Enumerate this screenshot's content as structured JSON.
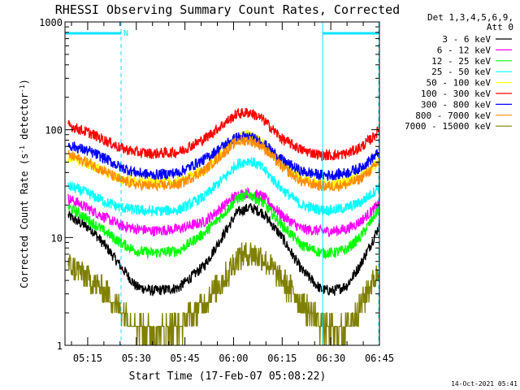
{
  "chart_data": {
    "type": "line",
    "title": "RHESSI Observing Summary Count Rates, Corrected",
    "xlabel": "Start Time (17-Feb-07 05:08:22)",
    "ylabel": "Corrected Count Rate (s-1 detector-1)",
    "ylabel_parts": {
      "a": "Corrected Count Rate (s",
      "b": "-1",
      "c": " detector",
      "d": "-1",
      "e": ")"
    },
    "yscale": "log",
    "ylim": [
      1,
      1000
    ],
    "xlim_minutes": [
      5.0,
      102.0
    ],
    "x_ticks": [
      {
        "m": 12,
        "label": "05:15"
      },
      {
        "m": 27,
        "label": "05:30"
      },
      {
        "m": 42,
        "label": "05:45"
      },
      {
        "m": 57,
        "label": "06:00"
      },
      {
        "m": 72,
        "label": "06:15"
      },
      {
        "m": 87,
        "label": "06:30"
      },
      {
        "m": 102,
        "label": "06:45"
      }
    ],
    "y_ticks": [
      {
        "v": 1,
        "label": "1"
      },
      {
        "v": 10,
        "label": "10"
      },
      {
        "v": 100,
        "label": "100"
      },
      {
        "v": 1000,
        "label": "1000"
      }
    ],
    "legend": {
      "header": [
        "Det 1,3,4,5,6,9,",
        "Att 0"
      ],
      "placement": "right"
    },
    "series": [
      {
        "name": "3 - 6 keV",
        "color": "#000000",
        "x": [
          6,
          9,
          13,
          18,
          22,
          27,
          32,
          40,
          48,
          55,
          58,
          62,
          66,
          72,
          78,
          84,
          88,
          92,
          96,
          100,
          102
        ],
        "y": [
          16,
          14,
          12,
          8,
          5.5,
          3.5,
          3.2,
          3.4,
          5.5,
          12,
          17,
          19,
          17,
          10,
          5,
          3.3,
          3.2,
          3.6,
          5.5,
          9.5,
          13
        ]
      },
      {
        "name": "6 - 12 keV",
        "color": "#ff00ff",
        "x": [
          6,
          9,
          13,
          18,
          22,
          27,
          32,
          40,
          48,
          55,
          58,
          62,
          66,
          72,
          78,
          84,
          88,
          92,
          96,
          100,
          102
        ],
        "y": [
          23,
          21,
          18,
          15,
          13,
          12,
          11.5,
          12,
          14,
          21,
          25,
          26,
          24,
          16,
          12,
          11.5,
          11.5,
          12,
          14,
          18,
          21
        ]
      },
      {
        "name": "12 - 25 keV",
        "color": "#00ff00",
        "x": [
          6,
          9,
          13,
          18,
          22,
          27,
          32,
          40,
          48,
          55,
          58,
          62,
          66,
          72,
          78,
          84,
          88,
          92,
          96,
          100,
          102
        ],
        "y": [
          19,
          17,
          14,
          11,
          9,
          7.5,
          7.2,
          7.5,
          11,
          18,
          23,
          25,
          21,
          13,
          8.5,
          7.2,
          7.2,
          7.8,
          10,
          15,
          19
        ]
      },
      {
        "name": "25 - 50 keV",
        "color": "#00ffff",
        "x": [
          6,
          9,
          13,
          18,
          22,
          27,
          32,
          40,
          48,
          55,
          58,
          62,
          66,
          72,
          78,
          84,
          88,
          92,
          96,
          100,
          102
        ],
        "y": [
          30,
          28,
          25,
          21,
          19,
          18,
          17.5,
          18,
          24,
          38,
          48,
          52,
          44,
          28,
          20,
          18,
          18,
          19,
          21,
          26,
          30
        ]
      },
      {
        "name": "50 - 100 keV",
        "color": "#ffff00",
        "x": [
          6,
          9,
          13,
          18,
          22,
          27,
          32,
          40,
          48,
          55,
          58,
          62,
          66,
          72,
          78,
          84,
          88,
          92,
          96,
          100,
          102
        ],
        "y": [
          55,
          52,
          47,
          40,
          35,
          33,
          32,
          33,
          42,
          68,
          85,
          90,
          75,
          48,
          36,
          32,
          32,
          33,
          37,
          45,
          52
        ]
      },
      {
        "name": "100 - 300 keV",
        "color": "#ff0000",
        "x": [
          6,
          9,
          13,
          18,
          22,
          27,
          32,
          40,
          48,
          55,
          58,
          62,
          66,
          72,
          78,
          84,
          88,
          92,
          96,
          100,
          102
        ],
        "y": [
          110,
          102,
          92,
          78,
          68,
          62,
          60,
          62,
          82,
          120,
          140,
          145,
          125,
          82,
          65,
          58,
          58,
          60,
          68,
          85,
          100
        ]
      },
      {
        "name": "300 - 800 keV",
        "color": "#0000ff",
        "x": [
          6,
          9,
          13,
          18,
          22,
          27,
          32,
          40,
          48,
          55,
          58,
          62,
          66,
          72,
          78,
          84,
          88,
          92,
          96,
          100,
          102
        ],
        "y": [
          72,
          68,
          62,
          53,
          45,
          40,
          38,
          40,
          53,
          75,
          85,
          86,
          76,
          52,
          41,
          38,
          38,
          40,
          44,
          55,
          62
        ]
      },
      {
        "name": "800 - 7000 keV",
        "color": "#ff8c00",
        "x": [
          6,
          9,
          13,
          18,
          22,
          27,
          32,
          40,
          48,
          55,
          58,
          62,
          66,
          72,
          78,
          84,
          88,
          92,
          96,
          100,
          102
        ],
        "y": [
          58,
          54,
          48,
          40,
          34,
          31,
          30,
          31,
          42,
          65,
          78,
          80,
          70,
          45,
          33,
          30,
          30,
          31,
          35,
          44,
          52
        ]
      },
      {
        "name": "7000 - 15000 keV",
        "color": "#808000",
        "x": [
          6,
          9,
          13,
          18,
          22,
          27,
          32,
          40,
          48,
          55,
          58,
          62,
          66,
          72,
          78,
          84,
          88,
          92,
          96,
          100,
          102
        ],
        "y": [
          5.5,
          5,
          4,
          3,
          2.2,
          1.6,
          1.3,
          1.5,
          2.5,
          4.5,
          6.5,
          7.2,
          6.5,
          4,
          2.5,
          1.6,
          1.3,
          1.5,
          2.3,
          4,
          5
        ]
      }
    ],
    "marker_lines": [
      {
        "m": 5.0,
        "style": "solid"
      },
      {
        "m": 22.3,
        "style": "dashed"
      },
      {
        "m": 84.5,
        "style": "solid"
      },
      {
        "m": 101.8,
        "style": "dashed"
      }
    ],
    "flag_bars": [
      {
        "from_m": 5.0,
        "to_m": 22.3,
        "label": "N"
      },
      {
        "from_m": 84.5,
        "to_m": 101.8,
        "label": ""
      }
    ],
    "flag_color": "#00e5ff"
  },
  "footer": {
    "timestamp": "14-Oct-2021 05:41"
  }
}
